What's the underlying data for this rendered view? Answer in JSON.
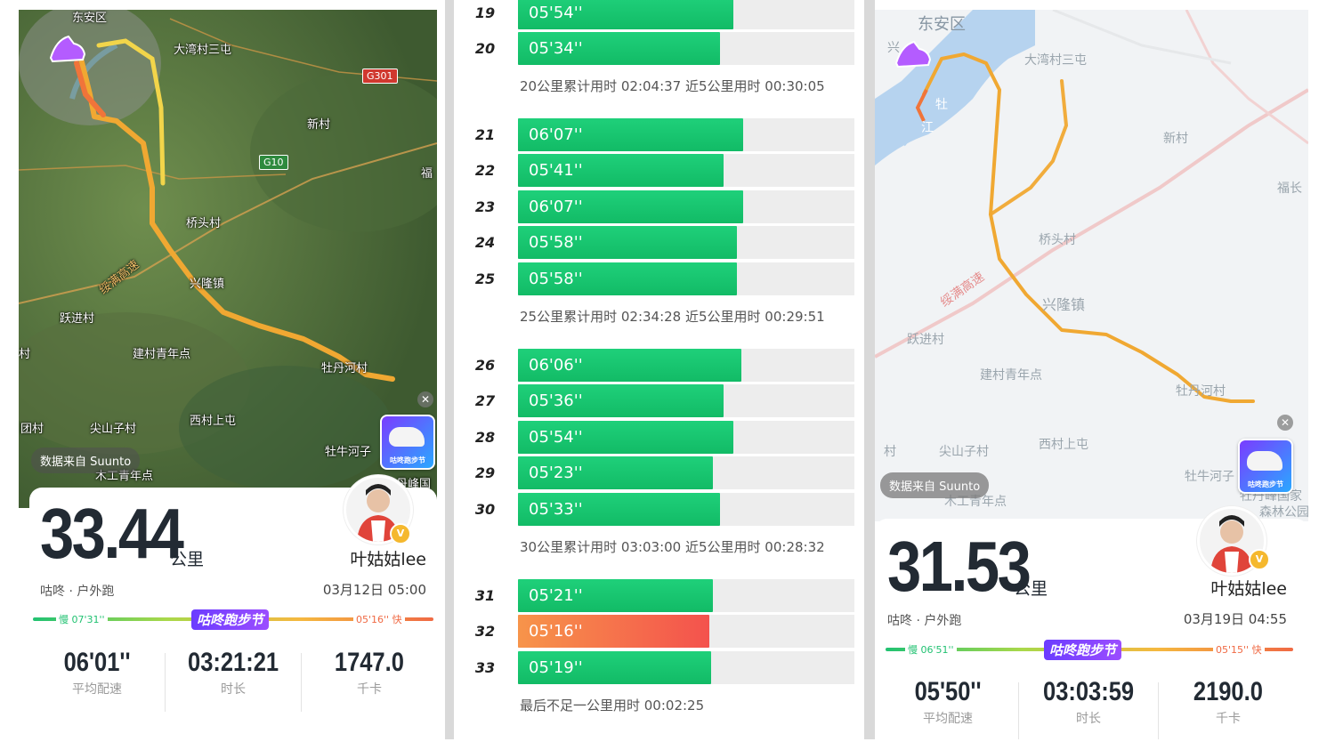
{
  "left": {
    "map_labels": [
      "东安区",
      "大湾村三屯",
      "新村",
      "福",
      "桥头村",
      "绥满高速",
      "兴隆镇",
      "跃进村",
      "建村青年点",
      "牡丹河村",
      "团村",
      "尖山子村",
      "西村上屯",
      "牡牛河子",
      "木工青年点",
      "丹峰国",
      "村"
    ],
    "shields": [
      "G301",
      "G10"
    ],
    "data_source": "数据来自 Suunto",
    "close_glyph": "✕",
    "promo_text": "咕咚跑步节",
    "distance": "33.44",
    "unit": "公里",
    "username": "叶姑姑lee",
    "badge": "V",
    "subtitle": "咕咚 · 户外跑",
    "date": "03月12日 05:00",
    "pace_slow": "慢 07'31''",
    "pace_fast": "05'16'' 快",
    "festival": "咕咚跑步节",
    "stats": [
      {
        "value": "06'01''",
        "label": "平均配速"
      },
      {
        "value": "03:21:21",
        "label": "时长"
      },
      {
        "value": "1747.0",
        "label": "千卡"
      }
    ]
  },
  "middle": {
    "rows": [
      {
        "km": "19",
        "pace": "05'54''",
        "fill": 0.64,
        "fast": false
      },
      {
        "km": "20",
        "pace": "05'34''",
        "fill": 0.6,
        "fast": false
      },
      {
        "km": "21",
        "pace": "06'07''",
        "fill": 0.67,
        "fast": false
      },
      {
        "km": "22",
        "pace": "05'41''",
        "fill": 0.61,
        "fast": false
      },
      {
        "km": "23",
        "pace": "06'07''",
        "fill": 0.67,
        "fast": false
      },
      {
        "km": "24",
        "pace": "05'58''",
        "fill": 0.65,
        "fast": false
      },
      {
        "km": "25",
        "pace": "05'58''",
        "fill": 0.65,
        "fast": false
      },
      {
        "km": "26",
        "pace": "06'06''",
        "fill": 0.665,
        "fast": false
      },
      {
        "km": "27",
        "pace": "05'36''",
        "fill": 0.61,
        "fast": false
      },
      {
        "km": "28",
        "pace": "05'54''",
        "fill": 0.64,
        "fast": false
      },
      {
        "km": "29",
        "pace": "05'23''",
        "fill": 0.58,
        "fast": false
      },
      {
        "km": "30",
        "pace": "05'33''",
        "fill": 0.6,
        "fast": false
      },
      {
        "km": "31",
        "pace": "05'21''",
        "fill": 0.58,
        "fast": false
      },
      {
        "km": "32",
        "pace": "05'16''",
        "fill": 0.57,
        "fast": true
      },
      {
        "km": "33",
        "pace": "05'19''",
        "fill": 0.575,
        "fast": false
      }
    ],
    "summaries": [
      "20公里累计用时 02:04:37  近5公里用时 00:30:05",
      "25公里累计用时 02:34:28  近5公里用时 00:29:51",
      "30公里累计用时 03:03:00  近5公里用时 00:28:32",
      "最后不足一公里用时 00:02:25"
    ]
  },
  "right": {
    "map_labels": [
      "东安区",
      "兴",
      "大湾村三屯",
      "牡",
      "江",
      "新村",
      "福长",
      "桥头村",
      "绥满高速",
      "兴隆镇",
      "跃进村",
      "建村青年点",
      "牡丹河村",
      "村",
      "尖山子村",
      "西村上屯",
      "牡牛河子",
      "木工青年点",
      "牡丹峰国家",
      "森林公园"
    ],
    "data_source": "数据来自 Suunto",
    "close_glyph": "✕",
    "promo_text": "咕咚跑步节",
    "distance": "31.53",
    "unit": "公里",
    "username": "叶姑姑lee",
    "badge": "V",
    "subtitle": "咕咚 · 户外跑",
    "date": "03月19日 04:55",
    "pace_slow": "慢 06'51''",
    "pace_fast": "05'15'' 快",
    "festival": "咕咚跑步节",
    "stats": [
      {
        "value": "05'50''",
        "label": "平均配速"
      },
      {
        "value": "03:03:59",
        "label": "时长"
      },
      {
        "value": "2190.0",
        "label": "千卡"
      }
    ]
  },
  "colors": {
    "green": "#12bb66",
    "fast": "#f4524d",
    "route": "#f0a832",
    "track": "#ededed"
  }
}
